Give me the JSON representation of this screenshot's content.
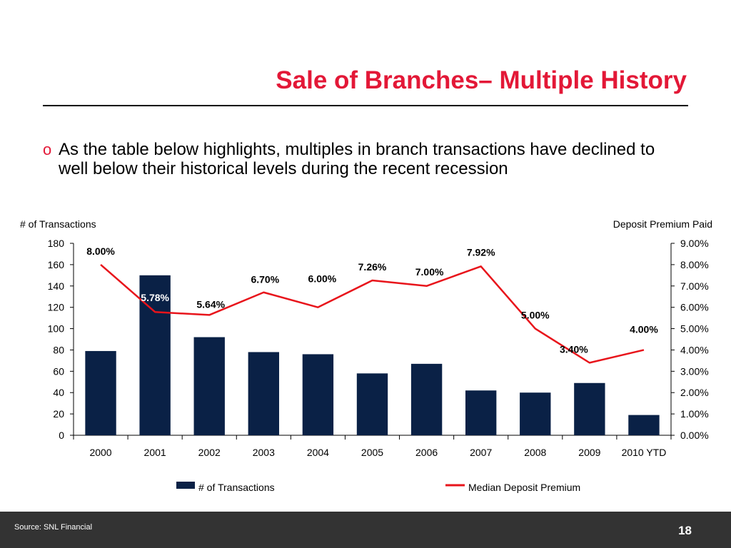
{
  "slide": {
    "title": "Sale of Branches– Multiple History",
    "bullet_marker": "o",
    "bullet_text": "As the table below highlights, multiples in branch transactions have declined to well below their historical levels during the recent recession"
  },
  "footer": {
    "source": "Source: SNL Financial",
    "page_number": "18"
  },
  "colors": {
    "bar": "#0a2146",
    "line": "#e8141b",
    "title": "#e31837",
    "footer_bg": "#333333"
  },
  "chart_data": {
    "type": "bar+line",
    "categories": [
      "2000",
      "2001",
      "2002",
      "2003",
      "2004",
      "2005",
      "2006",
      "2007",
      "2008",
      "2009",
      "2010 YTD"
    ],
    "series": [
      {
        "name": "# of Transactions",
        "type": "bar",
        "axis": "left",
        "values": [
          79,
          150,
          92,
          78,
          76,
          58,
          67,
          42,
          40,
          49,
          19
        ]
      },
      {
        "name": "Median Deposit Premium",
        "type": "line",
        "axis": "right",
        "values": [
          8.0,
          5.78,
          5.64,
          6.7,
          6.0,
          7.26,
          7.0,
          7.92,
          5.0,
          3.4,
          4.0
        ],
        "labels": [
          "8.00%",
          "5.78%",
          "5.64%",
          "6.70%",
          "6.00%",
          "7.26%",
          "7.00%",
          "7.92%",
          "5.00%",
          "3.40%",
          "4.00%"
        ]
      }
    ],
    "ylabel_left": "# of Transactions",
    "ylabel_right": "Deposit Premium Paid",
    "ylim_left": [
      0,
      180
    ],
    "yticks_left": [
      "0",
      "20",
      "40",
      "60",
      "80",
      "100",
      "120",
      "140",
      "160",
      "180"
    ],
    "ylim_right": [
      0,
      9
    ],
    "yticks_right": [
      "0.00%",
      "1.00%",
      "2.00%",
      "3.00%",
      "4.00%",
      "5.00%",
      "6.00%",
      "7.00%",
      "8.00%",
      "9.00%"
    ],
    "grid": false,
    "legend_position": "bottom"
  }
}
